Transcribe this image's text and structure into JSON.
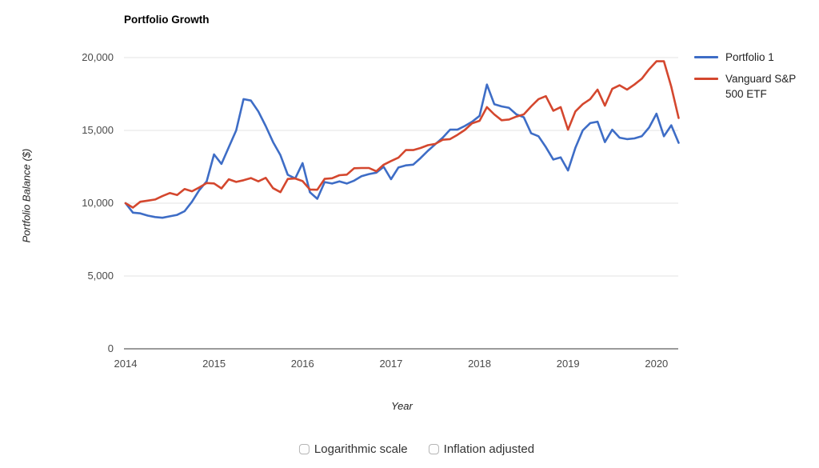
{
  "title": "Portfolio Growth",
  "y_axis_title": "Portfolio Balance ($)",
  "x_axis_title": "Year",
  "legend": [
    {
      "label": "Portfolio 1",
      "color": "#3e6dc6"
    },
    {
      "label": "Vanguard S&P 500 ETF",
      "color": "#d4472e"
    }
  ],
  "controls": {
    "logarithmic": {
      "label": "Logarithmic scale",
      "checked": false
    },
    "inflation": {
      "label": "Inflation adjusted",
      "checked": false
    }
  },
  "chart_data": {
    "type": "line",
    "title": "Portfolio Growth",
    "xlabel": "Year",
    "ylabel": "Portfolio Balance ($)",
    "frequency": "monthly",
    "x_start": "Jan 2014",
    "x_end": "Mar 2020",
    "initial_balance": 10000,
    "x_ticks": [
      2014,
      2015,
      2016,
      2017,
      2018,
      2019,
      2020
    ],
    "y_ticks": [
      {
        "value": 0,
        "label": "0"
      },
      {
        "value": 5000,
        "label": "5,000"
      },
      {
        "value": 10000,
        "label": "10,000"
      },
      {
        "value": 15000,
        "label": "15,000"
      },
      {
        "value": 20000,
        "label": "20,000"
      }
    ],
    "ylim": [
      0,
      20900
    ],
    "xlim": [
      2014,
      2020.3
    ],
    "grid": "horizontal",
    "legend_position": "right",
    "series": [
      {
        "name": "Portfolio 1",
        "color": "#3e6dc6",
        "values": [
          10000,
          9350,
          9300,
          9150,
          9050,
          9000,
          9100,
          9200,
          9450,
          10100,
          10900,
          11500,
          13350,
          12700,
          13850,
          15000,
          17150,
          17050,
          16300,
          15300,
          14200,
          13300,
          11950,
          11700,
          12750,
          10750,
          10300,
          11450,
          11350,
          11500,
          11350,
          11550,
          11850,
          12000,
          12100,
          12500,
          11650,
          12450,
          12600,
          12650,
          13100,
          13600,
          14050,
          14500,
          15050,
          15050,
          15300,
          15600,
          16000,
          18150,
          16800,
          16650,
          16550,
          16100,
          15900,
          14800,
          14600,
          13850,
          13000,
          13150,
          12250,
          13800,
          15000,
          15500,
          15600,
          14200,
          15050,
          14500,
          14400,
          14450,
          14600,
          15200,
          16150,
          14600,
          15350,
          14150
        ]
      },
      {
        "name": "Vanguard S&P 500 ETF",
        "color": "#d4472e",
        "values": [
          10000,
          9700,
          10100,
          10175,
          10250,
          10490,
          10700,
          10560,
          10975,
          10820,
          11085,
          11385,
          11355,
          11015,
          11645,
          11460,
          11575,
          11725,
          11500,
          11740,
          11035,
          10760,
          11665,
          11700,
          11515,
          10940,
          10925,
          11670,
          11715,
          11925,
          11960,
          12400,
          12415,
          12415,
          12190,
          12645,
          12895,
          13125,
          13650,
          13650,
          13790,
          13985,
          14070,
          14355,
          14400,
          14690,
          15030,
          15490,
          15660,
          16600,
          16100,
          15700,
          15750,
          15950,
          16100,
          16650,
          17150,
          17350,
          16350,
          16600,
          15050,
          16300,
          16800,
          17150,
          17800,
          16700,
          17850,
          18100,
          17800,
          18150,
          18550,
          19200,
          19750,
          19750,
          18000,
          15850
        ]
      }
    ]
  }
}
